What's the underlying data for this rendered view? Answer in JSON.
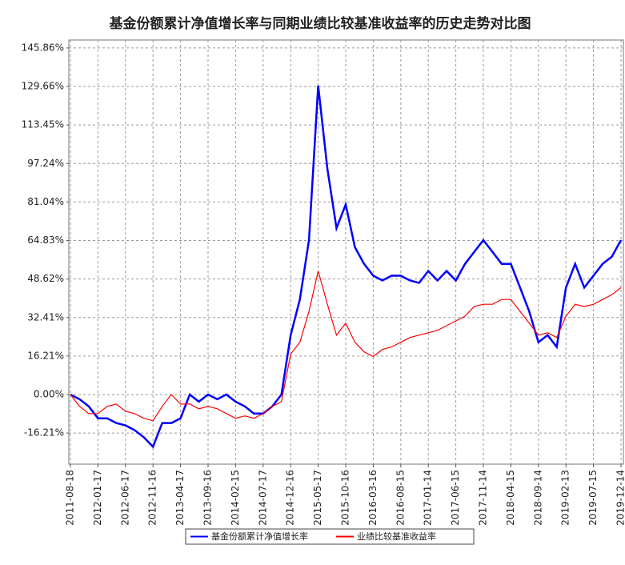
{
  "chart_data": {
    "type": "line",
    "title": "基金份额累计净值增长率与同期业绩比较基准收益率的历史走势对比图",
    "categories": [
      "2011-08-18",
      null,
      null,
      "2012-01-17",
      null,
      null,
      "2012-06-17",
      null,
      null,
      "2012-11-16",
      null,
      null,
      "2013-04-17",
      null,
      null,
      "2013-09-16",
      null,
      null,
      "2014-02-15",
      null,
      null,
      "2014-07-17",
      null,
      null,
      "2014-12-16",
      null,
      null,
      "2015-05-17",
      null,
      null,
      "2015-10-16",
      null,
      null,
      "2016-03-16",
      null,
      null,
      "2016-08-15",
      null,
      null,
      "2017-01-14",
      null,
      null,
      "2017-06-15",
      null,
      null,
      "2017-11-14",
      null,
      null,
      "2018-04-15",
      null,
      null,
      "2018-09-14",
      null,
      null,
      "2019-02-13",
      null,
      null,
      "2019-07-15",
      null,
      null,
      "2019-12-14"
    ],
    "series": [
      {
        "name": "基金份额累计净值增长率",
        "color": "#0000ff",
        "values": [
          0,
          -2,
          -5,
          -10,
          -10,
          -12,
          -13,
          -15,
          -18,
          -22,
          -12,
          -12,
          -10,
          0,
          -3,
          0,
          -2,
          0,
          -3,
          -5,
          -8,
          -8,
          -5,
          0,
          25,
          40,
          65,
          130,
          95,
          70,
          80,
          62,
          55,
          50,
          48,
          50,
          50,
          48,
          47,
          52,
          48,
          52,
          48,
          55,
          60,
          65,
          60,
          55,
          55,
          45,
          35,
          22,
          25,
          20,
          45,
          55,
          45,
          50,
          55,
          58,
          65
        ]
      },
      {
        "name": "业绩比较基准收益率",
        "color": "#ff0000",
        "values": [
          0,
          -5,
          -8,
          -8,
          -5,
          -4,
          -7,
          -8,
          -10,
          -11,
          -5,
          0,
          -4,
          -4,
          -6,
          -5,
          -6,
          -8,
          -10,
          -9,
          -10,
          -8,
          -5,
          -3,
          17,
          22,
          35,
          52,
          38,
          25,
          30,
          22,
          18,
          16,
          19,
          20,
          22,
          24,
          25,
          26,
          27,
          29,
          31,
          33,
          37,
          38,
          38,
          40,
          40,
          35,
          30,
          25,
          26,
          24,
          33,
          38,
          37,
          38,
          40,
          42,
          45
        ]
      }
    ],
    "ylim": [
      -29.3,
      149.2
    ],
    "yticks": [
      {
        "value": -16.21,
        "label": "-16.21%"
      },
      {
        "value": 0,
        "label": "0.00%"
      },
      {
        "value": 16.21,
        "label": "16.21%"
      },
      {
        "value": 32.41,
        "label": "32.41%"
      },
      {
        "value": 48.62,
        "label": "48.62%"
      },
      {
        "value": 64.83,
        "label": "64.83%"
      },
      {
        "value": 81.04,
        "label": "81.04%"
      },
      {
        "value": 97.24,
        "label": "97.24%"
      },
      {
        "value": 113.45,
        "label": "113.45%"
      },
      {
        "value": 129.66,
        "label": "129.66%"
      },
      {
        "value": 145.86,
        "label": "145.86%"
      }
    ],
    "grid": true
  }
}
